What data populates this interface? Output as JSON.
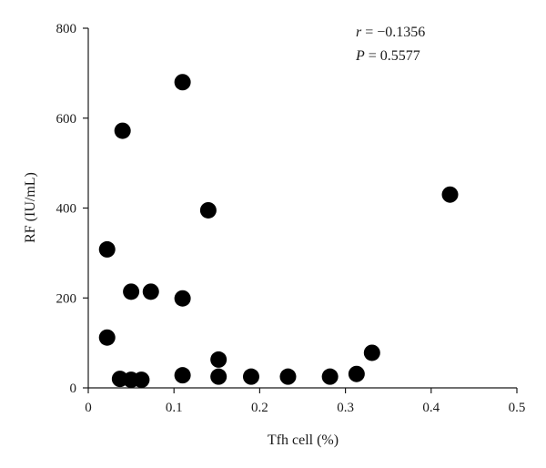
{
  "chart_data": {
    "type": "scatter",
    "title": "",
    "xlabel": "Tfh cell (%)",
    "ylabel": "RF (IU/mL)",
    "xlim": [
      0,
      0.5
    ],
    "ylim": [
      0,
      800
    ],
    "x_ticks": [
      0,
      0.1,
      0.2,
      0.3,
      0.4,
      0.5
    ],
    "x_tick_labels": [
      "0",
      "0.1",
      "0.2",
      "0.3",
      "0.4",
      "0.5"
    ],
    "y_ticks": [
      0,
      200,
      400,
      600,
      800
    ],
    "y_tick_labels": [
      "0",
      "200",
      "400",
      "600",
      "800"
    ],
    "grid": false,
    "annotations": {
      "r_symbol": "r",
      "r_value": " = −0.1356",
      "p_symbol": "P",
      "p_value": " = 0.5577"
    },
    "point_color": "#000000",
    "points": [
      {
        "x": 0.11,
        "y": 680
      },
      {
        "x": 0.04,
        "y": 572
      },
      {
        "x": 0.14,
        "y": 395
      },
      {
        "x": 0.422,
        "y": 430
      },
      {
        "x": 0.022,
        "y": 308
      },
      {
        "x": 0.05,
        "y": 214
      },
      {
        "x": 0.073,
        "y": 214
      },
      {
        "x": 0.11,
        "y": 199
      },
      {
        "x": 0.022,
        "y": 112
      },
      {
        "x": 0.331,
        "y": 78
      },
      {
        "x": 0.152,
        "y": 63
      },
      {
        "x": 0.037,
        "y": 20
      },
      {
        "x": 0.05,
        "y": 18
      },
      {
        "x": 0.062,
        "y": 18
      },
      {
        "x": 0.11,
        "y": 28
      },
      {
        "x": 0.152,
        "y": 25
      },
      {
        "x": 0.19,
        "y": 25
      },
      {
        "x": 0.233,
        "y": 25
      },
      {
        "x": 0.282,
        "y": 25
      },
      {
        "x": 0.313,
        "y": 31
      }
    ]
  }
}
